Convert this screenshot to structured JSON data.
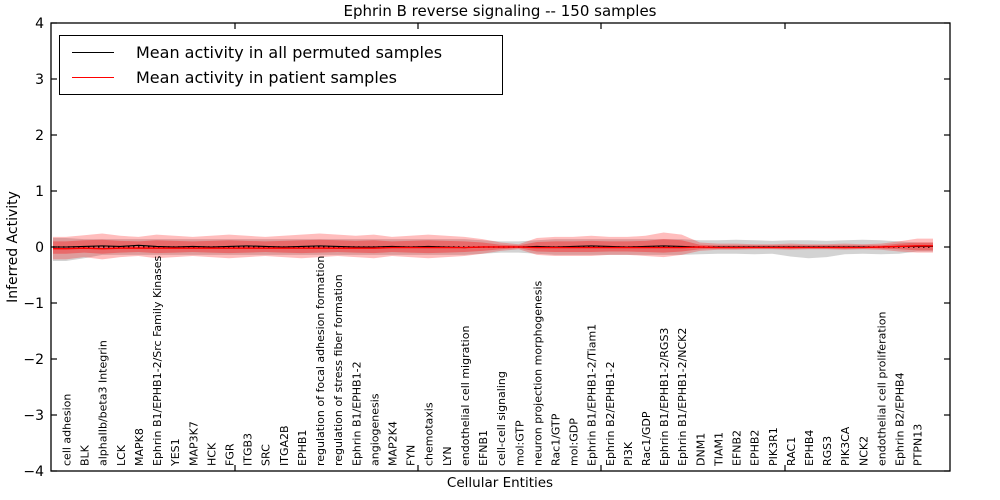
{
  "title": "Ephrin B reverse signaling -- 150 samples",
  "axes": {
    "ylabel": "Inferred Activity",
    "xlabel": "Cellular Entities",
    "ytick_labels": [
      "4",
      "3",
      "2",
      "1",
      "0",
      "−1",
      "−2",
      "−3",
      "−4"
    ],
    "ytick_values": [
      4,
      3,
      2,
      1,
      0,
      -1,
      -2,
      -3,
      -4
    ],
    "ylim": [
      -4,
      4
    ]
  },
  "legend": {
    "items": [
      {
        "label": "Mean activity in all permuted samples",
        "color": "#000000"
      },
      {
        "label": "Mean activity in patient samples",
        "color": "#ff0000"
      }
    ]
  },
  "chart_data": {
    "type": "line",
    "title": "Ephrin B reverse signaling -- 150 samples",
    "xlabel": "Cellular Entities",
    "ylabel": "Inferred Activity",
    "ylim": [
      -4,
      4
    ],
    "grid": false,
    "legend_position": "upper left",
    "categories": [
      "cell adhesion",
      "BLK",
      "alphaIIb/beta3 Integrin",
      "LCK",
      "MAPK8",
      "Ephrin B1/EPHB1-2/Src Family Kinases",
      "YES1",
      "MAP3K7",
      "HCK",
      "FGR",
      "ITGB3",
      "SRC",
      "ITGA2B",
      "EPHB1",
      "regulation of focal adhesion formation",
      "regulation of stress fiber formation",
      "Ephrin B1/EPHB1-2",
      "angiogenesis",
      "MAP2K4",
      "FYN",
      "chemotaxis",
      "LYN",
      "endothelial cell migration",
      "EFNB1",
      "cell-cell signaling",
      "mol:GTP",
      "neuron projection morphogenesis",
      "Rac1/GTP",
      "mol:GDP",
      "Ephrin B1/EPHB1-2/Tiam1",
      "Ephrin B2/EPHB1-2",
      "PI3K",
      "Rac1/GDP",
      "Ephrin B1/EPHB1-2/RGS3",
      "Ephrin B1/EPHB1-2/NCK2",
      "DNM1",
      "TIAM1",
      "EFNB2",
      "EPHB2",
      "PIK3R1",
      "RAC1",
      "EPHB4",
      "RGS3",
      "PIK3CA",
      "NCK2",
      "endothelial cell proliferation",
      "Ephrin B2/EPHB4",
      "PTPN13"
    ],
    "zero_line": 0,
    "series": [
      {
        "name": "Mean activity in all permuted samples",
        "color": "#000000",
        "values": [
          0.0,
          0.01,
          0.02,
          0.01,
          0.03,
          0.01,
          0.0,
          0.01,
          0.0,
          0.01,
          0.02,
          0.01,
          0.0,
          0.01,
          0.02,
          0.01,
          0.0,
          0.0,
          0.01,
          0.0,
          0.01,
          0.0,
          -0.01,
          0.0,
          0.0,
          0.0,
          0.01,
          0.0,
          0.01,
          0.02,
          0.01,
          0.0,
          0.01,
          0.02,
          0.01,
          0.0,
          0.0,
          0.0,
          0.0,
          0.0,
          0.0,
          0.0,
          0.0,
          0.0,
          0.0,
          0.0,
          0.01,
          0.01
        ]
      },
      {
        "name": "Mean activity in patient samples",
        "color": "#ff0000",
        "values": [
          -0.03,
          -0.02,
          -0.03,
          -0.02,
          -0.02,
          -0.02,
          -0.02,
          -0.02,
          -0.02,
          -0.02,
          -0.02,
          -0.02,
          -0.02,
          -0.02,
          -0.02,
          -0.02,
          -0.02,
          -0.02,
          -0.01,
          -0.01,
          -0.01,
          -0.01,
          -0.01,
          0.0,
          0.0,
          0.0,
          -0.01,
          -0.01,
          -0.01,
          -0.01,
          -0.01,
          -0.01,
          -0.01,
          -0.01,
          -0.01,
          0.0,
          -0.01,
          -0.01,
          -0.01,
          -0.01,
          -0.01,
          -0.01,
          -0.01,
          -0.01,
          -0.01,
          0.0,
          0.01,
          0.02
        ]
      }
    ],
    "bands": [
      {
        "name": "permuted-samples-range",
        "color": "#9e9e9e",
        "opacity": 0.45,
        "upper": [
          0.16,
          0.14,
          0.14,
          0.14,
          0.14,
          0.14,
          0.14,
          0.14,
          0.14,
          0.14,
          0.14,
          0.14,
          0.14,
          0.14,
          0.14,
          0.14,
          0.14,
          0.14,
          0.14,
          0.14,
          0.14,
          0.14,
          0.14,
          0.12,
          0.1,
          0.1,
          0.12,
          0.14,
          0.14,
          0.14,
          0.14,
          0.14,
          0.14,
          0.14,
          0.14,
          0.12,
          0.12,
          0.13,
          0.12,
          0.11,
          0.12,
          0.12,
          0.11,
          0.12,
          0.13,
          0.12,
          0.1,
          0.08
        ],
        "lower": [
          -0.25,
          -0.2,
          -0.14,
          -0.14,
          -0.14,
          -0.14,
          -0.14,
          -0.14,
          -0.14,
          -0.14,
          -0.14,
          -0.14,
          -0.14,
          -0.14,
          -0.14,
          -0.14,
          -0.14,
          -0.14,
          -0.14,
          -0.14,
          -0.14,
          -0.14,
          -0.14,
          -0.12,
          -0.1,
          -0.1,
          -0.12,
          -0.14,
          -0.14,
          -0.14,
          -0.14,
          -0.14,
          -0.14,
          -0.14,
          -0.14,
          -0.13,
          -0.12,
          -0.12,
          -0.13,
          -0.12,
          -0.17,
          -0.2,
          -0.18,
          -0.13,
          -0.12,
          -0.13,
          -0.12,
          -0.08
        ]
      },
      {
        "name": "patient-samples-range-outer",
        "color": "#ff0000",
        "opacity": 0.26,
        "upper": [
          0.18,
          0.21,
          0.24,
          0.2,
          0.18,
          0.22,
          0.2,
          0.18,
          0.2,
          0.22,
          0.2,
          0.18,
          0.2,
          0.22,
          0.24,
          0.22,
          0.2,
          0.22,
          0.18,
          0.2,
          0.22,
          0.2,
          0.18,
          0.14,
          0.08,
          0.05,
          0.16,
          0.18,
          0.18,
          0.2,
          0.18,
          0.18,
          0.2,
          0.26,
          0.22,
          0.08,
          0.06,
          0.06,
          0.05,
          0.05,
          0.06,
          0.05,
          0.05,
          0.06,
          0.05,
          0.06,
          0.1,
          0.15
        ],
        "lower": [
          -0.22,
          -0.18,
          -0.22,
          -0.18,
          -0.16,
          -0.2,
          -0.18,
          -0.16,
          -0.18,
          -0.2,
          -0.18,
          -0.16,
          -0.18,
          -0.2,
          -0.18,
          -0.16,
          -0.18,
          -0.2,
          -0.16,
          -0.18,
          -0.2,
          -0.18,
          -0.16,
          -0.12,
          -0.07,
          -0.04,
          -0.14,
          -0.16,
          -0.16,
          -0.16,
          -0.14,
          -0.14,
          -0.16,
          -0.18,
          -0.14,
          -0.07,
          -0.05,
          -0.05,
          -0.04,
          -0.04,
          -0.05,
          -0.04,
          -0.04,
          -0.05,
          -0.04,
          -0.05,
          -0.08,
          -0.1
        ]
      },
      {
        "name": "patient-samples-range-inner",
        "color": "#ff0000",
        "opacity": 0.32,
        "upper": [
          0.1,
          0.12,
          0.13,
          0.11,
          0.1,
          0.12,
          0.11,
          0.1,
          0.11,
          0.12,
          0.11,
          0.1,
          0.11,
          0.12,
          0.13,
          0.12,
          0.11,
          0.12,
          0.1,
          0.11,
          0.12,
          0.11,
          0.1,
          0.08,
          0.04,
          0.03,
          0.09,
          0.1,
          0.1,
          0.11,
          0.1,
          0.1,
          0.11,
          0.14,
          0.12,
          0.04,
          0.03,
          0.03,
          0.03,
          0.03,
          0.03,
          0.03,
          0.03,
          0.03,
          0.03,
          0.03,
          0.06,
          0.08
        ],
        "lower": [
          -0.12,
          -0.1,
          -0.12,
          -0.1,
          -0.09,
          -0.11,
          -0.1,
          -0.09,
          -0.1,
          -0.11,
          -0.1,
          -0.09,
          -0.1,
          -0.11,
          -0.1,
          -0.09,
          -0.1,
          -0.11,
          -0.09,
          -0.1,
          -0.11,
          -0.1,
          -0.09,
          -0.07,
          -0.04,
          -0.02,
          -0.08,
          -0.09,
          -0.09,
          -0.09,
          -0.08,
          -0.08,
          -0.09,
          -0.1,
          -0.08,
          -0.04,
          -0.03,
          -0.03,
          -0.02,
          -0.02,
          -0.03,
          -0.02,
          -0.02,
          -0.03,
          -0.02,
          -0.03,
          -0.04,
          -0.06
        ]
      }
    ]
  }
}
